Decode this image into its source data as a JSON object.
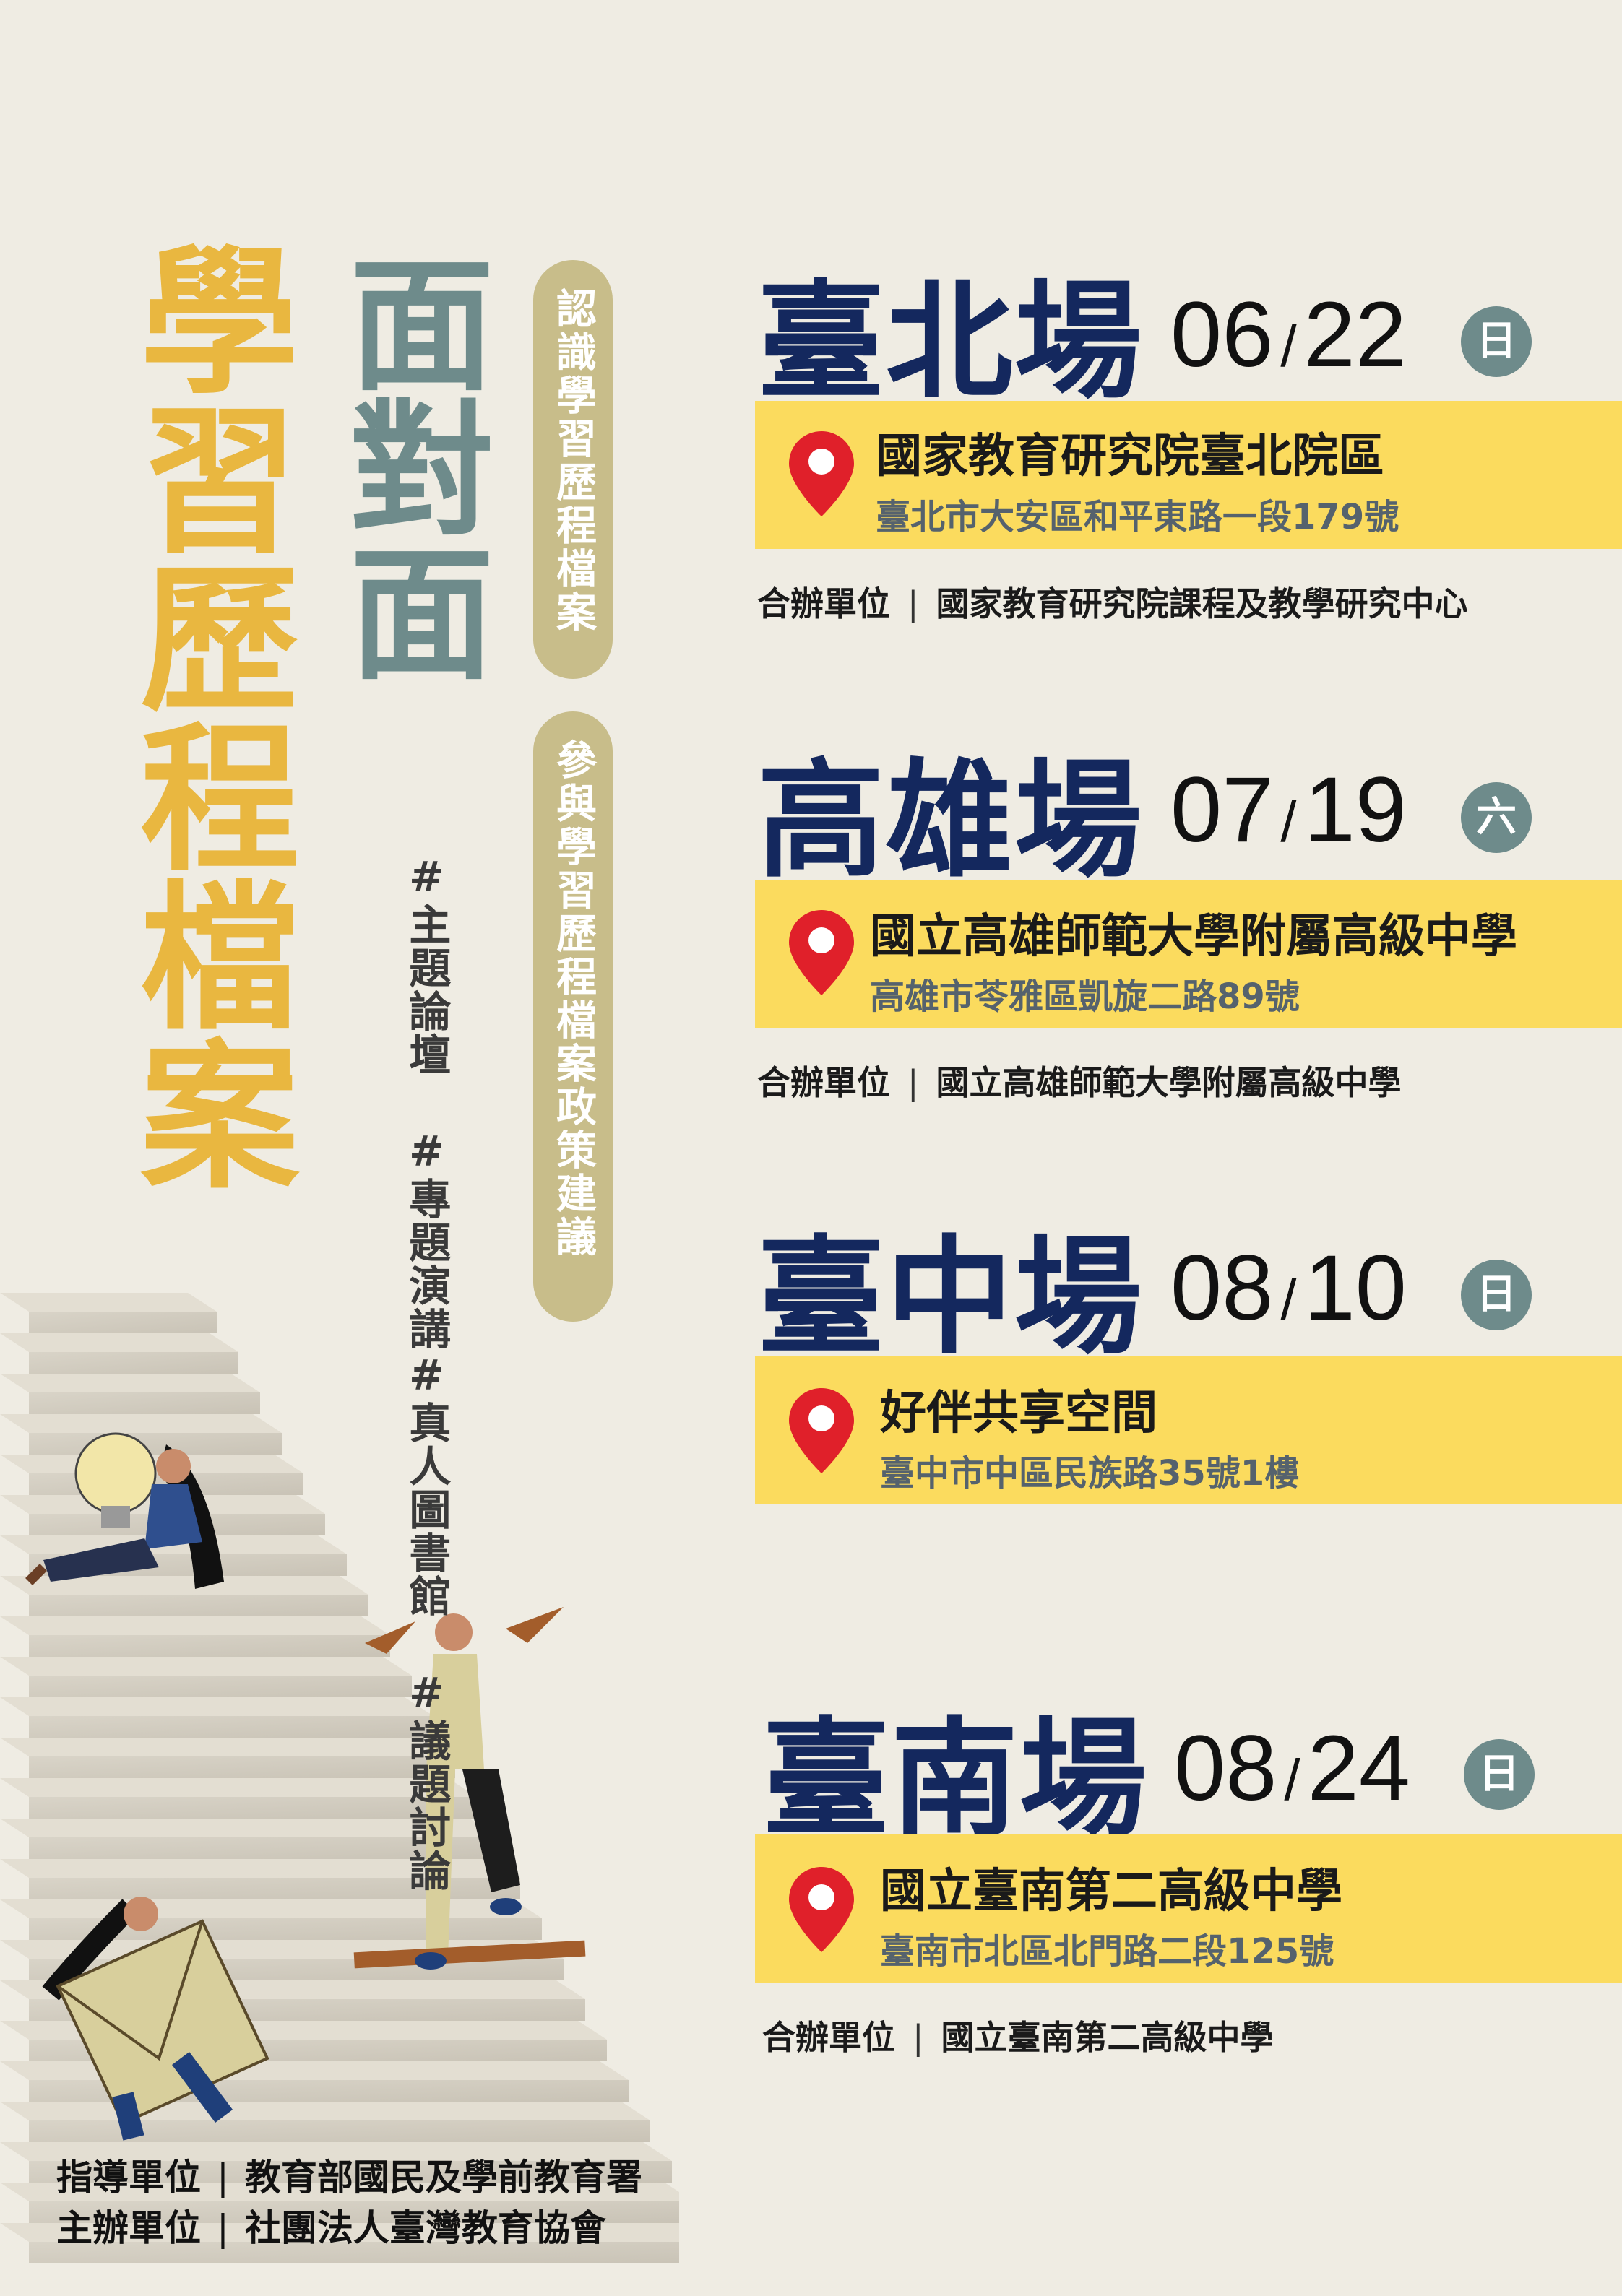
{
  "title": {
    "main": "學習歷程檔案",
    "sub": "面對面",
    "tags_line1": "#主題論壇 #專題演講",
    "tags_line2": "#真人圖書館 #議題討論",
    "pill1": "認識學習歷程檔案",
    "pill2": "參與學習歷程檔案政策建議"
  },
  "events": [
    {
      "city": "臺北場",
      "month": "06",
      "slash": "/",
      "day": "22",
      "weekday": "日",
      "venue": "國家教育研究院臺北院區",
      "address": "臺北市大安區和平東路一段179號",
      "co_label": "合辦單位",
      "co_sep": "|",
      "co_org": "國家教育研究院課程及教學研究中心"
    },
    {
      "city": "高雄場",
      "month": "07",
      "slash": "/",
      "day": "19",
      "weekday": "六",
      "venue": "國立高雄師範大學附屬高級中學",
      "address": "高雄市苓雅區凱旋二路89號",
      "co_label": "合辦單位",
      "co_sep": "|",
      "co_org": "國立高雄師範大學附屬高級中學"
    },
    {
      "city": "臺中場",
      "month": "08",
      "slash": "/",
      "day": "10",
      "weekday": "日",
      "venue": "好伴共享空間",
      "address": "臺中市中區民族路35號1樓"
    },
    {
      "city": "臺南場",
      "month": "08",
      "slash": "/",
      "day": "24",
      "weekday": "日",
      "venue": "國立臺南第二高級中學",
      "address": "臺南市北區北門路二段125號",
      "co_label": "合辦單位",
      "co_sep": "|",
      "co_org": "國立臺南第二高級中學"
    }
  ],
  "footer": {
    "guide_label": "指導單位",
    "guide_sep": "|",
    "guide_org": "教育部國民及學前教育署",
    "host_label": "主辦單位",
    "host_sep": "|",
    "host_org": "社團法人臺灣教育協會"
  },
  "colors": {
    "background": "#efece3",
    "title_yellow": "#e9b740",
    "title_grey": "#6e8b8b",
    "city_navy": "#14285e",
    "bar_yellow": "#fbdb5e",
    "pin_red": "#e0202a",
    "pill": "#c8bd8a"
  },
  "icons": [
    "location-pin-icon",
    "lightbulb-illustration",
    "paper-plane-icon",
    "envelope-illustration"
  ]
}
